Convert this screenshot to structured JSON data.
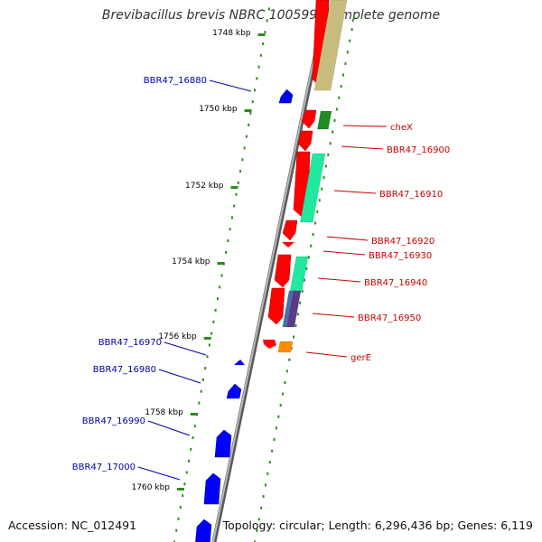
{
  "title": "Brevibacillus brevis NBRC 100599, complete genome",
  "footer": {
    "accession": "Accession: NC_012491",
    "info": "Topology: circular; Length: 6,296,436 bp; Genes: 6,119"
  },
  "colors": {
    "backbone": "#8a8a8a",
    "tick": "#2e8b1e",
    "cds": "#ff0000",
    "reverse_gene": "#0000ff",
    "forward_label": "#cc0000",
    "reverse_label": "#0000aa",
    "kbp_label": "#000000"
  },
  "kbp_ticks": [
    "1748 kbp",
    "1750 kbp",
    "1752 kbp",
    "1754 kbp",
    "1756 kbp",
    "1758 kbp",
    "1760 kbp"
  ],
  "forward_genes": [
    "cheX",
    "BBR47_16900",
    "BBR47_16910",
    "BBR47_16920",
    "BBR47_16930",
    "BBR47_16940",
    "BBR47_16950",
    "gerE"
  ],
  "reverse_genes": [
    "BBR47_16880",
    "BBR47_16970",
    "BBR47_16980",
    "BBR47_16990",
    "BBR47_17000"
  ]
}
